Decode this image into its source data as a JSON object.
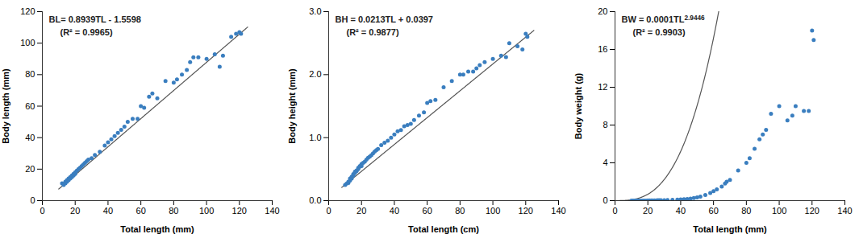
{
  "chart_data": [
    {
      "type": "scatter",
      "xlabel": "Total length (mm)",
      "ylabel": "Body length (mm)",
      "x": [
        12,
        13,
        14,
        14,
        15,
        15,
        16,
        16,
        17,
        17,
        18,
        18,
        19,
        19,
        20,
        20,
        21,
        22,
        23,
        24,
        25,
        26,
        27,
        28,
        30,
        32,
        35,
        38,
        40,
        42,
        44,
        46,
        48,
        50,
        52,
        55,
        58,
        60,
        62,
        65,
        67,
        70,
        75,
        80,
        82,
        85,
        88,
        90,
        92,
        95,
        100,
        105,
        108,
        110,
        115,
        118,
        120,
        121
      ],
      "values": [
        11,
        10,
        12,
        11,
        12,
        13,
        13,
        14,
        14,
        15,
        15,
        16,
        16,
        17,
        17,
        18,
        19,
        20,
        21,
        22,
        23,
        24,
        25,
        26,
        27,
        29,
        31,
        35,
        37,
        39,
        41,
        43,
        45,
        47,
        50,
        52,
        52,
        60,
        59,
        66,
        68,
        65,
        76,
        75,
        77,
        80,
        83,
        88,
        91,
        91,
        90,
        93,
        85,
        92,
        104,
        106,
        107,
        106
      ],
      "color": "#3a7ebf",
      "fit": {
        "type": "linear",
        "slope": 0.8939,
        "intercept": -1.5598,
        "x_range": [
          10,
          125
        ],
        "color": "#555555"
      },
      "annotations": [
        {
          "text": "BL= 0.8939TL - 1.5598"
        },
        {
          "text": "(R² = 0.9965)"
        }
      ],
      "xlim": [
        0,
        140
      ],
      "ylim": [
        0,
        120
      ],
      "xticks": [
        0,
        20,
        40,
        60,
        80,
        100,
        120,
        140
      ],
      "yticks": [
        0,
        20,
        40,
        60,
        80,
        100,
        120
      ],
      "grid": false
    },
    {
      "type": "scatter",
      "xlabel": "Total length (cm)",
      "ylabel": "Body height (mm)",
      "x": [
        10,
        11,
        12,
        12,
        13,
        13,
        14,
        14,
        15,
        15,
        16,
        16,
        17,
        17,
        18,
        18,
        19,
        19,
        20,
        20,
        21,
        22,
        23,
        24,
        25,
        26,
        27,
        28,
        29,
        30,
        32,
        34,
        36,
        38,
        40,
        42,
        44,
        46,
        48,
        50,
        52,
        55,
        58,
        60,
        62,
        65,
        70,
        75,
        80,
        82,
        85,
        88,
        90,
        92,
        95,
        100,
        105,
        108,
        110,
        115,
        118,
        120,
        121
      ],
      "values": [
        0.25,
        0.27,
        0.28,
        0.3,
        0.32,
        0.35,
        0.35,
        0.38,
        0.4,
        0.42,
        0.44,
        0.46,
        0.47,
        0.48,
        0.5,
        0.52,
        0.54,
        0.55,
        0.55,
        0.58,
        0.6,
        0.62,
        0.65,
        0.68,
        0.7,
        0.72,
        0.75,
        0.78,
        0.8,
        0.82,
        0.88,
        0.92,
        0.95,
        1.0,
        1.05,
        1.1,
        1.12,
        1.18,
        1.2,
        1.22,
        1.28,
        1.35,
        1.4,
        1.55,
        1.58,
        1.6,
        1.8,
        1.9,
        2.0,
        2.0,
        2.05,
        2.05,
        2.1,
        2.15,
        2.2,
        2.25,
        2.3,
        2.28,
        2.5,
        2.45,
        2.4,
        2.65,
        2.6
      ],
      "color": "#3a7ebf",
      "fit": {
        "type": "linear",
        "slope": 0.0213,
        "intercept": 0.0397,
        "x_range": [
          8,
          125
        ],
        "color": "#555555"
      },
      "annotations": [
        {
          "text": "BH = 0.0213TL + 0.0397"
        },
        {
          "text": "(R² = 0.9877)"
        }
      ],
      "xlim": [
        0,
        140
      ],
      "ylim": [
        0,
        3
      ],
      "xticks": [
        0,
        20,
        40,
        60,
        80,
        100,
        120,
        140
      ],
      "yticks": [
        0,
        1,
        2,
        3
      ],
      "grid": false
    },
    {
      "type": "scatter",
      "xlabel": "Total length (mm)",
      "ylabel": "Body weight (g)",
      "x": [
        10,
        11,
        12,
        13,
        14,
        15,
        16,
        17,
        18,
        19,
        20,
        21,
        22,
        23,
        24,
        25,
        26,
        27,
        28,
        30,
        32,
        35,
        38,
        40,
        42,
        44,
        46,
        48,
        50,
        52,
        55,
        58,
        60,
        62,
        65,
        67,
        68,
        70,
        75,
        80,
        82,
        85,
        88,
        90,
        92,
        95,
        100,
        105,
        108,
        110,
        115,
        118,
        120,
        121
      ],
      "values": [
        0.0,
        0.0,
        0.0,
        0.0,
        0.0,
        0.0,
        0.01,
        0.01,
        0.01,
        0.01,
        0.02,
        0.02,
        0.02,
        0.03,
        0.03,
        0.03,
        0.04,
        0.04,
        0.05,
        0.05,
        0.06,
        0.08,
        0.1,
        0.12,
        0.15,
        0.18,
        0.22,
        0.28,
        0.35,
        0.42,
        0.6,
        0.8,
        1.0,
        1.2,
        1.5,
        1.8,
        2.0,
        2.2,
        3.2,
        4.0,
        4.5,
        5.5,
        6.5,
        7.0,
        7.5,
        9.2,
        10.0,
        8.5,
        9.0,
        10.0,
        9.5,
        9.5,
        18.0,
        17.0
      ],
      "color": "#3a7ebf",
      "fit": {
        "type": "power",
        "coef": 0.0001,
        "exponent": 2.9446,
        "x_range": [
          1,
          125
        ],
        "color": "#555555"
      },
      "annotations": [
        {
          "text": "BW = 0.0001TL",
          "superscript": "2.9446"
        },
        {
          "text": "(R² = 0.9903)"
        }
      ],
      "xlim": [
        0,
        140
      ],
      "ylim": [
        0,
        20
      ],
      "xticks": [
        0,
        20,
        40,
        60,
        80,
        100,
        120,
        140
      ],
      "yticks": [
        0,
        4,
        8,
        12,
        16,
        20
      ],
      "grid": false
    }
  ]
}
